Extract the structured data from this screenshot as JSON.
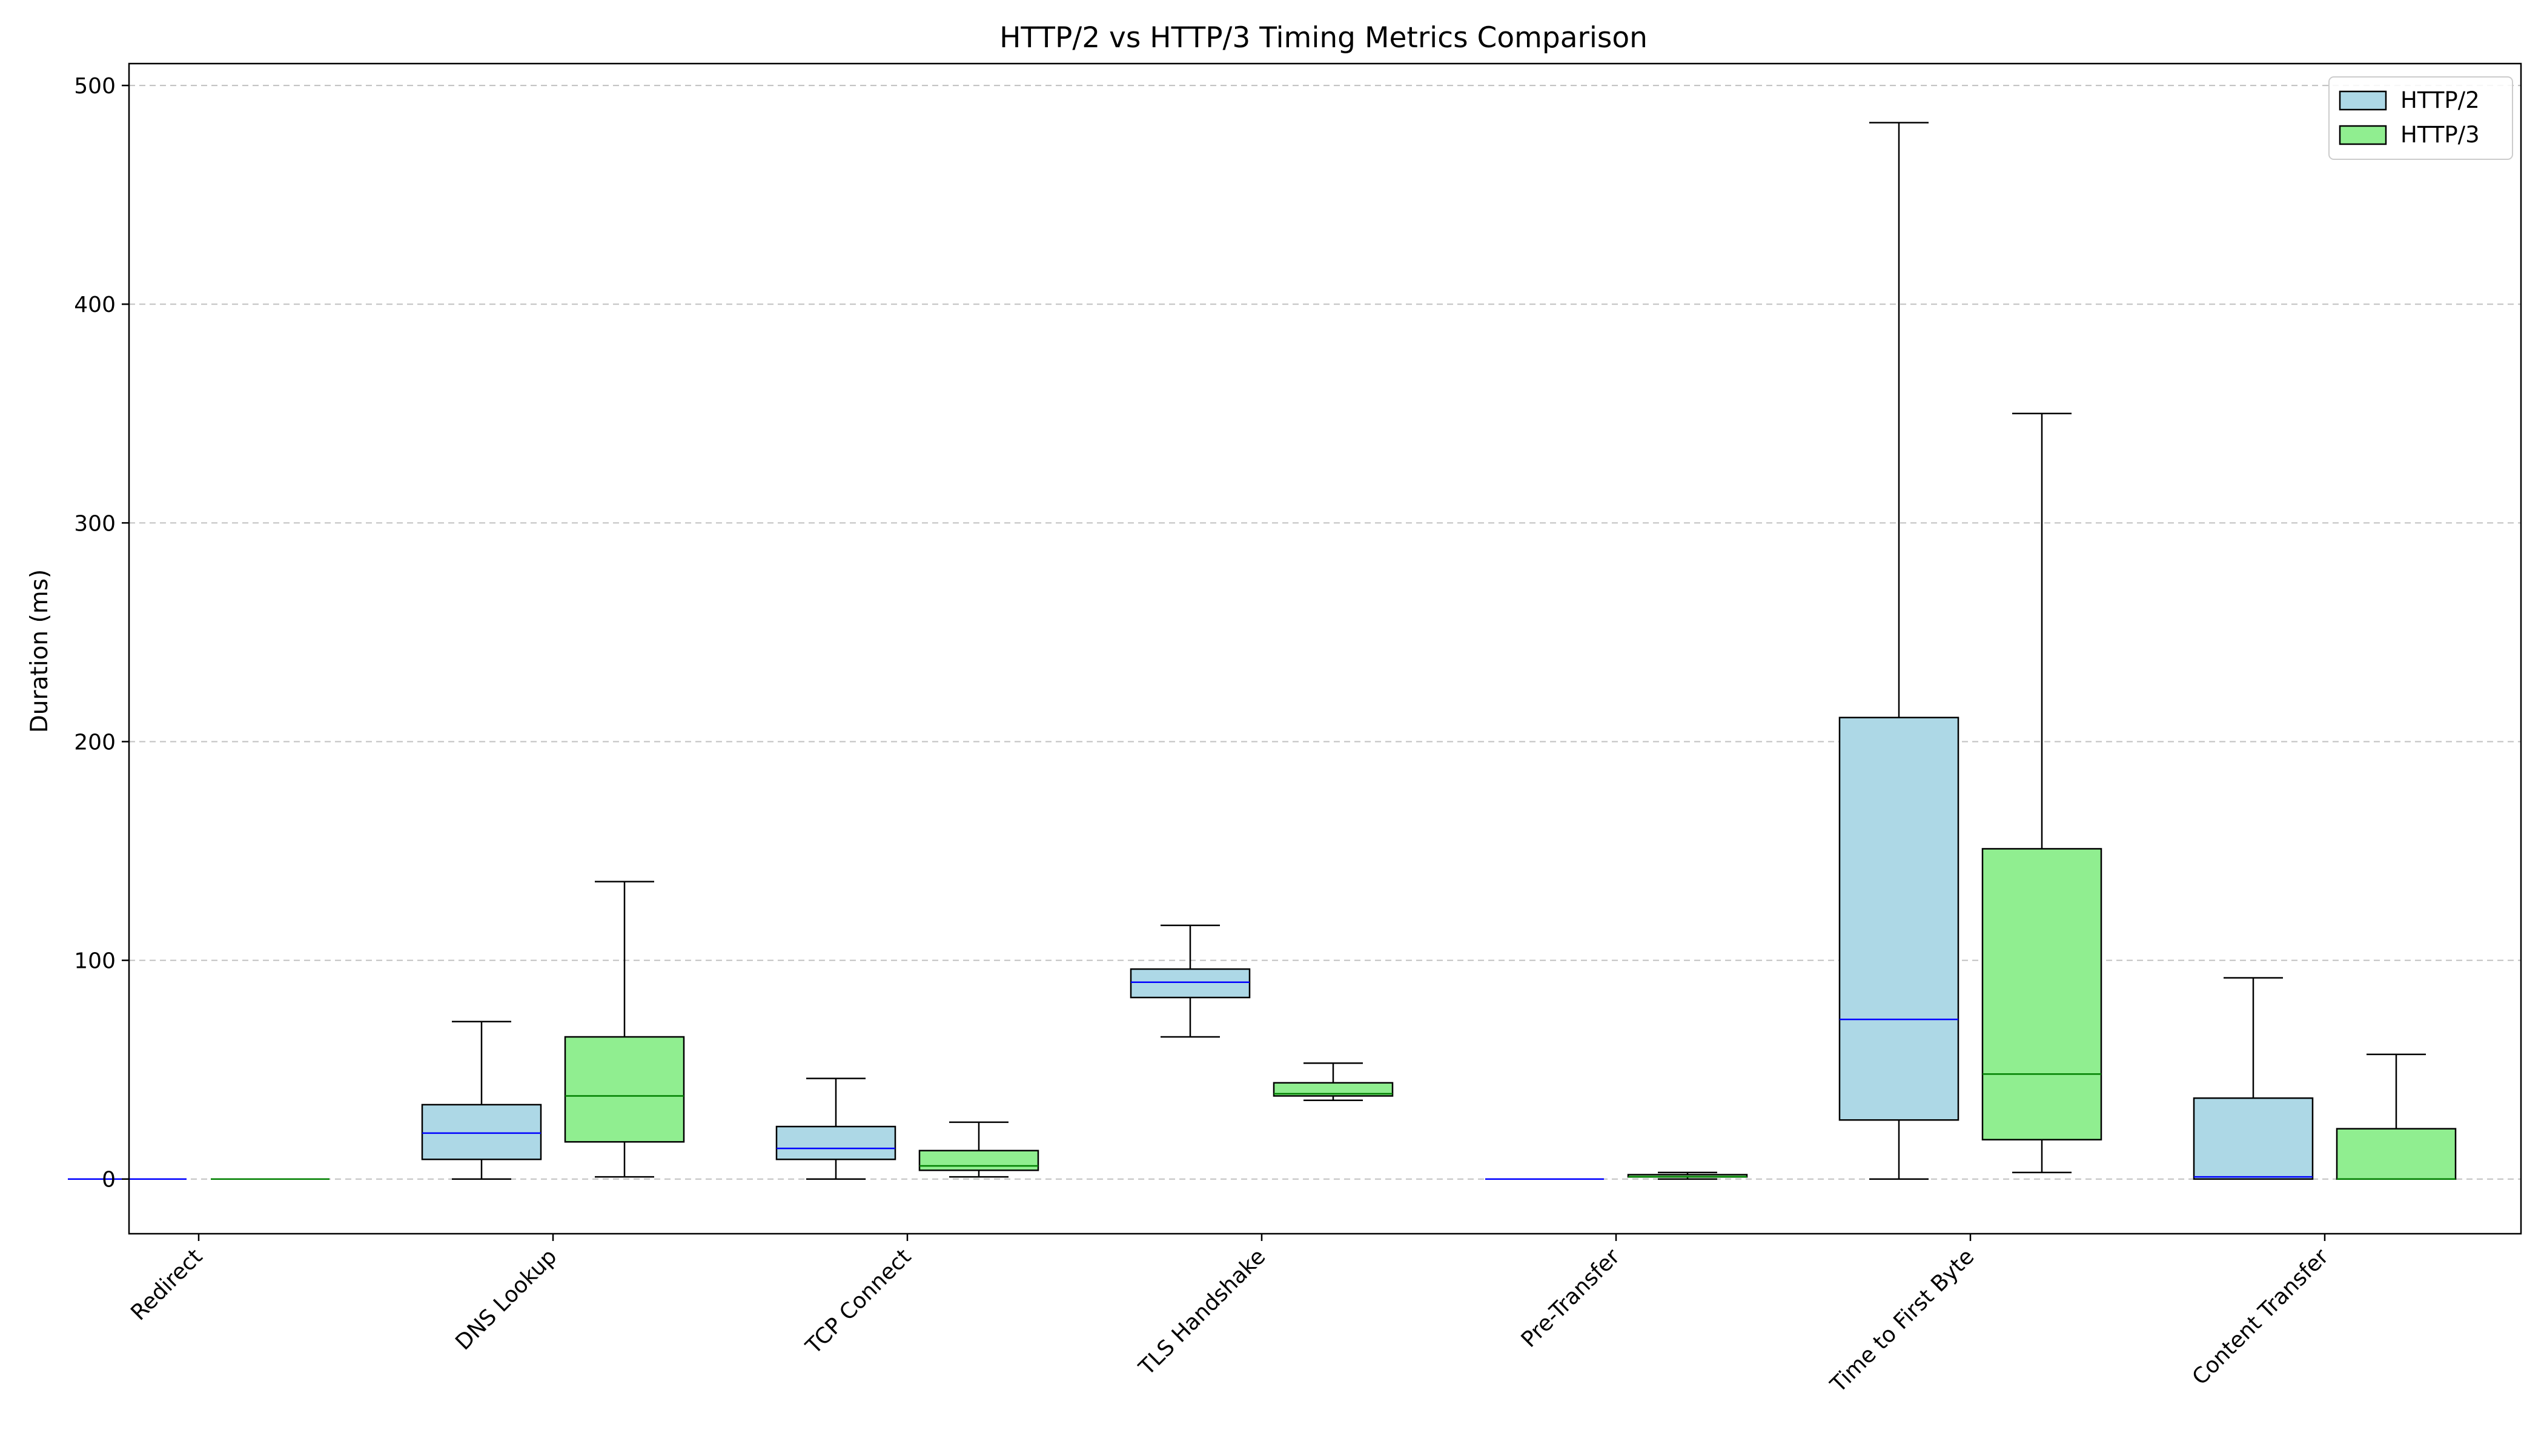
{
  "chart_data": {
    "type": "boxplot",
    "title": "HTTP/2 vs HTTP/3 Timing Metrics Comparison",
    "xlabel": "",
    "ylabel": "Duration (ms)",
    "ylim": [
      -25,
      510
    ],
    "yticks": [
      0,
      100,
      200,
      300,
      400,
      500
    ],
    "grid": "y-dashed",
    "legend_position": "top-right",
    "categories": [
      "Redirect",
      "DNS Lookup",
      "TCP Connect",
      "TLS Handshake",
      "Pre-Transfer",
      "Time to First Byte",
      "Content Transfer"
    ],
    "series": [
      {
        "name": "HTTP/2",
        "fill": "#add8e6",
        "median_color": "#0000ff",
        "boxes": [
          {
            "min": 0,
            "q1": 0,
            "median": 0,
            "q3": 0,
            "max": 0
          },
          {
            "min": 0,
            "q1": 9,
            "median": 21,
            "q3": 34,
            "max": 72
          },
          {
            "min": 0,
            "q1": 9,
            "median": 14,
            "q3": 24,
            "max": 46
          },
          {
            "min": 65,
            "q1": 83,
            "median": 90,
            "q3": 96,
            "max": 116
          },
          {
            "min": 0,
            "q1": 0,
            "median": 0,
            "q3": 0,
            "max": 0
          },
          {
            "min": 0,
            "q1": 27,
            "median": 73,
            "q3": 211,
            "max": 483
          },
          {
            "min": 0,
            "q1": 0,
            "median": 1,
            "q3": 37,
            "max": 92
          }
        ]
      },
      {
        "name": "HTTP/3",
        "fill": "#90ee90",
        "median_color": "#008000",
        "boxes": [
          {
            "min": 0,
            "q1": 0,
            "median": 0,
            "q3": 0,
            "max": 0
          },
          {
            "min": 1,
            "q1": 17,
            "median": 38,
            "q3": 65,
            "max": 136
          },
          {
            "min": 1,
            "q1": 4,
            "median": 6,
            "q3": 13,
            "max": 26
          },
          {
            "min": 36,
            "q1": 38,
            "median": 39,
            "q3": 44,
            "max": 53
          },
          {
            "min": 0,
            "q1": 1,
            "median": 1,
            "q3": 2,
            "max": 3
          },
          {
            "min": 3,
            "q1": 18,
            "median": 48,
            "q3": 151,
            "max": 350
          },
          {
            "min": 0,
            "q1": 0,
            "median": 0,
            "q3": 23,
            "max": 57
          }
        ]
      }
    ]
  }
}
